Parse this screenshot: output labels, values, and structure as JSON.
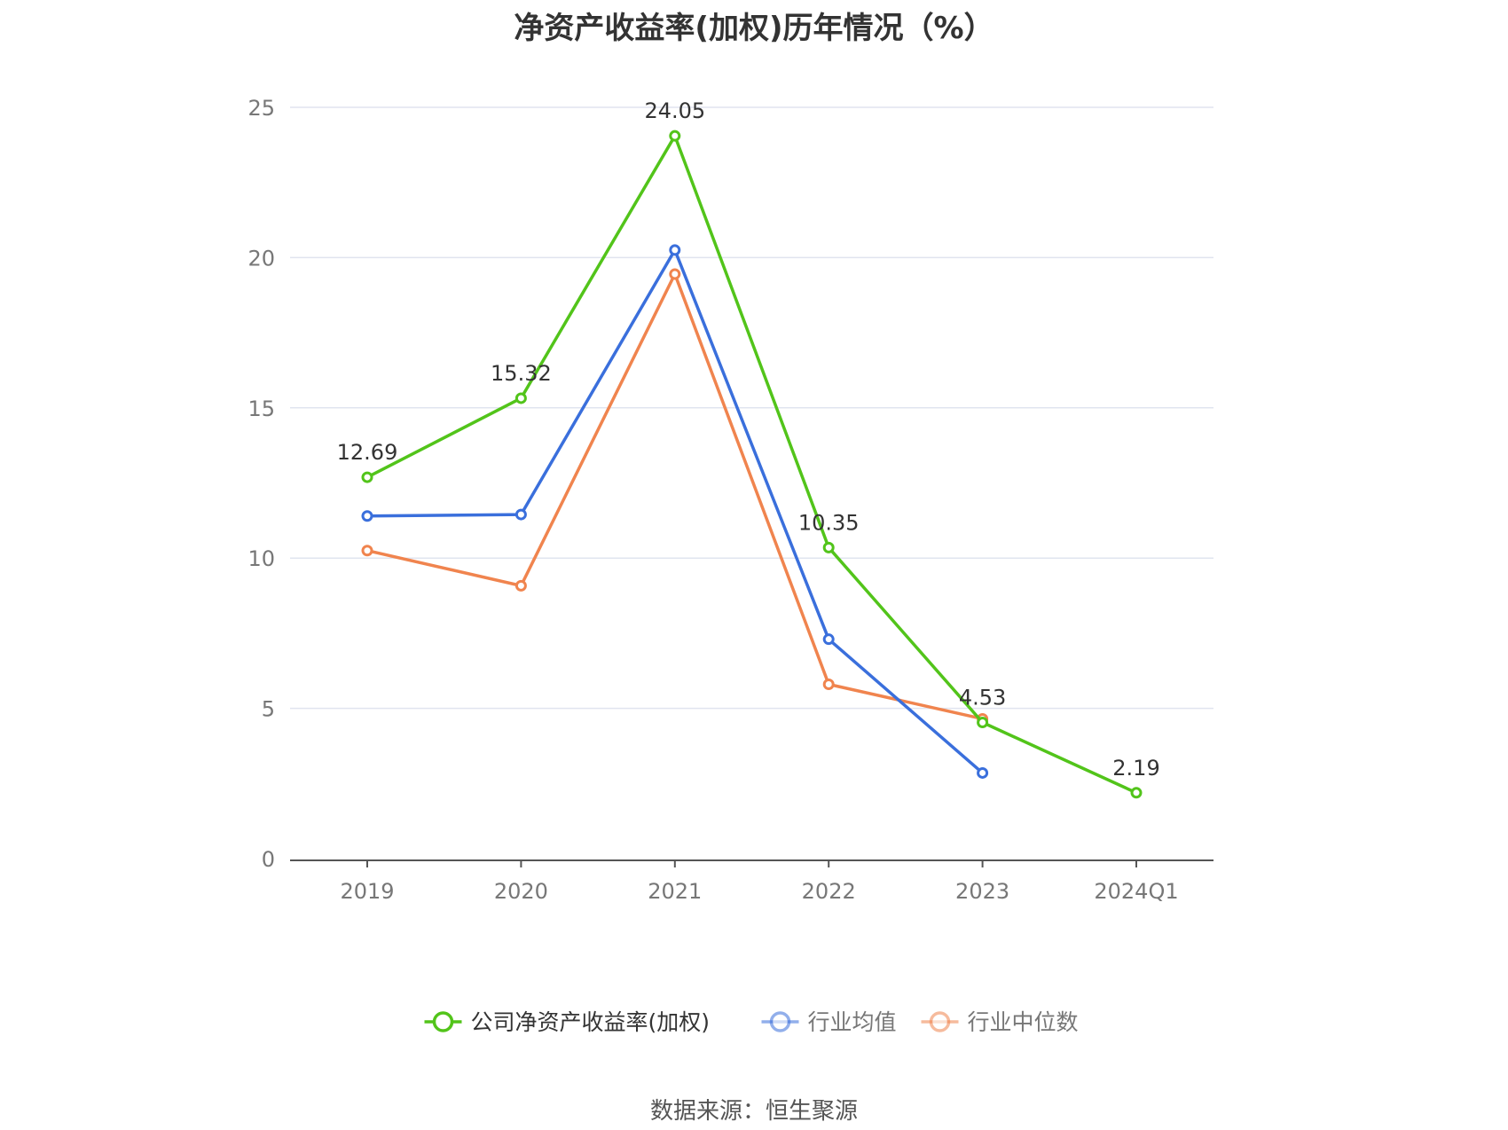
{
  "chart_data": {
    "type": "line",
    "title": "净资产收益率(加权)历年情况（%）",
    "categories": [
      "2019",
      "2020",
      "2021",
      "2022",
      "2023",
      "2024Q1"
    ],
    "ylim": [
      0,
      25
    ],
    "yticks": [
      0,
      5,
      10,
      15,
      20,
      25
    ],
    "grid": true,
    "legend_position": "bottom",
    "series": [
      {
        "name": "公司净资产收益率(加权)",
        "color": "#52c41a",
        "values": [
          12.69,
          15.32,
          24.05,
          10.35,
          4.53,
          2.19
        ],
        "show_labels": true
      },
      {
        "name": "行业均值",
        "color": "#3a6fdc",
        "values": [
          11.4,
          11.45,
          20.25,
          7.3,
          2.85,
          null
        ],
        "show_labels": false
      },
      {
        "name": "行业中位数",
        "color": "#f0844e",
        "values": [
          10.25,
          9.08,
          19.45,
          5.8,
          4.65,
          null
        ],
        "show_labels": false
      }
    ]
  },
  "source_text": "数据来源：恒生聚源"
}
